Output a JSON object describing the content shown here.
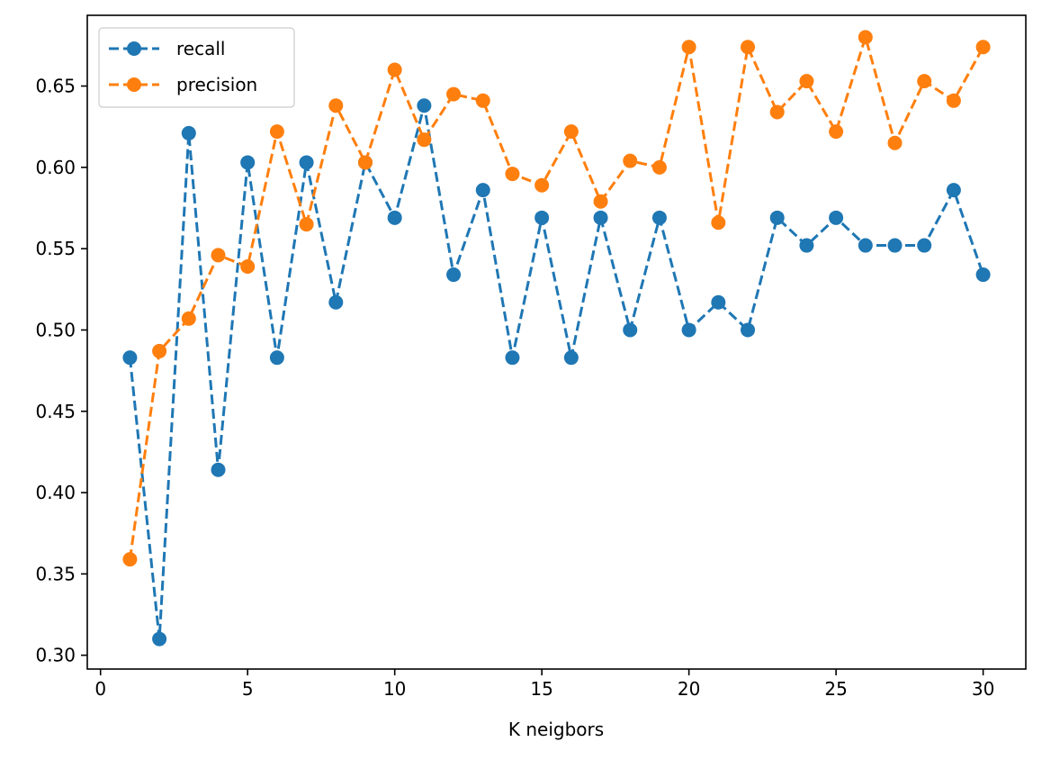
{
  "chart_data": {
    "type": "line",
    "title": "",
    "xlabel": "K neigbors",
    "ylabel": "",
    "xlim": [
      -0.45,
      31.45
    ],
    "ylim": [
      0.2915,
      0.6935
    ],
    "xticks": [
      0,
      5,
      10,
      15,
      20,
      25,
      30
    ],
    "yticks": [
      0.3,
      0.35,
      0.4,
      0.45,
      0.5,
      0.55,
      0.6,
      0.65
    ],
    "x": [
      1,
      2,
      3,
      4,
      5,
      6,
      7,
      8,
      9,
      10,
      11,
      12,
      13,
      14,
      15,
      16,
      17,
      18,
      19,
      20,
      21,
      22,
      23,
      24,
      25,
      26,
      27,
      28,
      29,
      30
    ],
    "legend_position": "upper-left",
    "grid": false,
    "series": [
      {
        "name": "recall",
        "color": "#1f77b4",
        "line_style": "dashed",
        "marker": "circle",
        "values": [
          0.483,
          0.31,
          0.621,
          0.414,
          0.603,
          0.483,
          0.603,
          0.517,
          0.603,
          0.569,
          0.638,
          0.534,
          0.586,
          0.483,
          0.569,
          0.483,
          0.569,
          0.5,
          0.569,
          0.5,
          0.517,
          0.5,
          0.569,
          0.552,
          0.569,
          0.552,
          0.552,
          0.552,
          0.586,
          0.534
        ]
      },
      {
        "name": "precision",
        "color": "#ff7f0e",
        "line_style": "dashed",
        "marker": "circle",
        "values": [
          0.359,
          0.487,
          0.507,
          0.546,
          0.539,
          0.622,
          0.565,
          0.638,
          0.603,
          0.66,
          0.617,
          0.645,
          0.641,
          0.596,
          0.589,
          0.622,
          0.579,
          0.604,
          0.6,
          0.674,
          0.566,
          0.674,
          0.634,
          0.653,
          0.622,
          0.68,
          0.615,
          0.653,
          0.641,
          0.674
        ]
      }
    ]
  }
}
